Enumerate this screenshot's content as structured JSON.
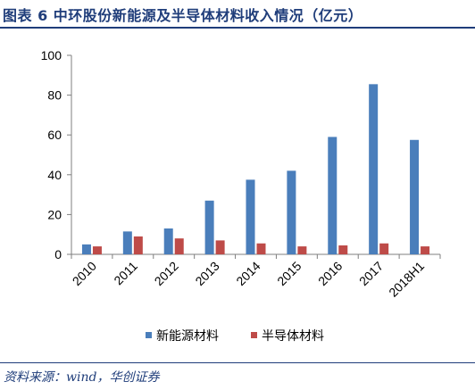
{
  "figure_title": "图表 6   中环股份新能源及半导体材料收入情况（亿元）",
  "source_note": "资料来源：wind，华创证券",
  "chart_data": {
    "type": "bar",
    "categories": [
      "2010",
      "2011",
      "2012",
      "2013",
      "2014",
      "2015",
      "2016",
      "2017",
      "2018H1"
    ],
    "series": [
      {
        "name": "新能源材料",
        "color": "#4a7ebb",
        "values": [
          5,
          11.5,
          13,
          27,
          37.5,
          42,
          59,
          85.5,
          57.5
        ]
      },
      {
        "name": "半导体材料",
        "color": "#be4b48",
        "values": [
          4,
          9,
          8,
          7,
          5.5,
          4,
          4.5,
          5.5,
          4
        ]
      }
    ],
    "ylim": [
      0,
      100
    ],
    "yticks": [
      0,
      20,
      40,
      60,
      80,
      100
    ],
    "grid": false,
    "legend_position": "bottom"
  }
}
